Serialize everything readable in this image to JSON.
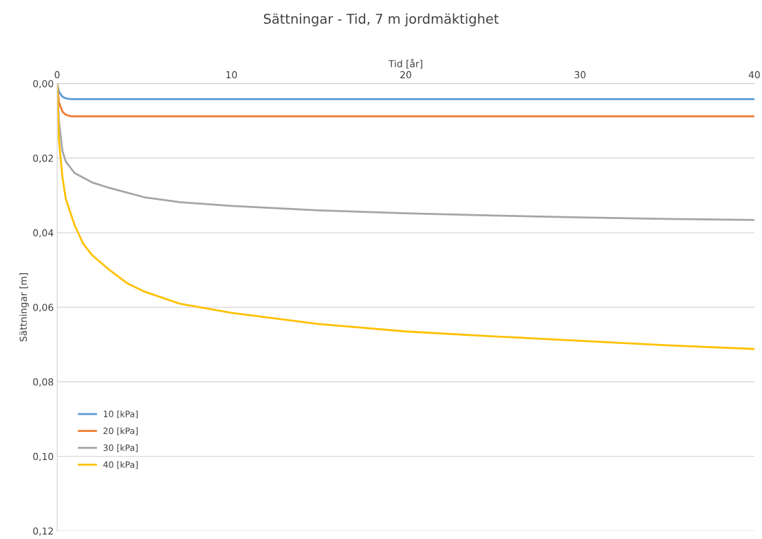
{
  "chart_data": {
    "type": "line",
    "title": "Sättningar - Tid, 7 m jordmäktighet",
    "xlabel": "Tid [år]",
    "ylabel": "Sättningar [m]",
    "xlim": [
      0,
      40
    ],
    "xticks": [
      0,
      10,
      20,
      30,
      40
    ],
    "ylim": [
      0.12,
      0
    ],
    "yticks": [
      {
        "value": 0,
        "label": "0,00"
      },
      {
        "value": 0.02,
        "label": "0,02"
      },
      {
        "value": 0.04,
        "label": "0,04"
      },
      {
        "value": 0.06,
        "label": "0,06"
      },
      {
        "value": 0.08,
        "label": "0,08"
      },
      {
        "value": 0.1,
        "label": "0,10"
      },
      {
        "value": 0.12,
        "label": "0,12"
      }
    ],
    "grid": "y",
    "legend": "bottom left",
    "marker": "none",
    "line_style": "solid",
    "series": [
      {
        "name": "10 [kPa]",
        "color": "#5b9bd5",
        "x": [
          0,
          0.1,
          0.3,
          0.5,
          0.8,
          1,
          5,
          10,
          20,
          30,
          40
        ],
        "values": [
          0,
          0.0022,
          0.0035,
          0.004,
          0.0042,
          0.0042,
          0.0042,
          0.0042,
          0.0042,
          0.0042,
          0.0042
        ]
      },
      {
        "name": "20 [kPa]",
        "color": "#ed7d31",
        "x": [
          0,
          0.1,
          0.3,
          0.5,
          0.8,
          1,
          5,
          10,
          20,
          30,
          40
        ],
        "values": [
          0,
          0.005,
          0.0075,
          0.0084,
          0.0088,
          0.0088,
          0.0088,
          0.0088,
          0.0088,
          0.0088,
          0.0088
        ]
      },
      {
        "name": "30 [kPa]",
        "color": "#a5a5a5",
        "x": [
          0,
          0.1,
          0.3,
          0.5,
          1,
          2,
          3,
          5,
          7,
          10,
          15,
          20,
          25,
          30,
          35,
          40
        ],
        "values": [
          0,
          0.01,
          0.018,
          0.021,
          0.024,
          0.0265,
          0.028,
          0.0305,
          0.0318,
          0.0328,
          0.034,
          0.0348,
          0.0354,
          0.0359,
          0.0363,
          0.0366
        ]
      },
      {
        "name": "40 [kPa]",
        "color": "#ffc000",
        "x": [
          0,
          0.1,
          0.3,
          0.5,
          1,
          1.5,
          2,
          3,
          4,
          5,
          7,
          10,
          15,
          20,
          25,
          30,
          35,
          40
        ],
        "values": [
          0,
          0.015,
          0.025,
          0.031,
          0.038,
          0.043,
          0.046,
          0.05,
          0.0535,
          0.0558,
          0.059,
          0.0615,
          0.0645,
          0.0665,
          0.0678,
          0.069,
          0.0702,
          0.0712
        ]
      }
    ]
  }
}
